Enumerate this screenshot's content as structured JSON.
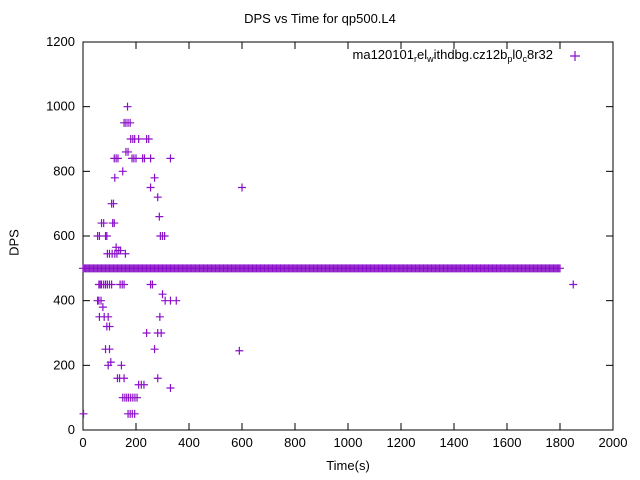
{
  "title": "DPS vs Time for qp500.L4",
  "legend": {
    "segments": [
      {
        "text": "ma120101",
        "sub": false
      },
      {
        "text": "r",
        "sub": true
      },
      {
        "text": "el",
        "sub": false
      },
      {
        "text": "w",
        "sub": true
      },
      {
        "text": "ithdbg.cz12b",
        "sub": false
      },
      {
        "text": "p",
        "sub": true
      },
      {
        "text": "l0",
        "sub": false
      },
      {
        "text": "c",
        "sub": true
      },
      {
        "text": "8r32",
        "sub": false
      }
    ],
    "marker": "+"
  },
  "chart_data": {
    "type": "scatter",
    "title": "DPS vs Time for qp500.L4",
    "xlabel": "Time(s)",
    "ylabel": "DPS",
    "xlim": [
      0,
      2000
    ],
    "ylim": [
      0,
      1200
    ],
    "xticks": [
      0,
      200,
      400,
      600,
      800,
      1000,
      1200,
      1400,
      1600,
      1800,
      2000
    ],
    "yticks": [
      0,
      200,
      400,
      600,
      800,
      1000,
      1200
    ],
    "grid": false,
    "legend_position": "top-right-inside",
    "marker": "plus",
    "color": "#8a0fc8",
    "series": [
      {
        "name": "ma120101_rel_withdbg.cz12b_pl0_c8r32",
        "band": {
          "y": 500,
          "x_start": 0,
          "x_end": 1800,
          "step": 5
        },
        "points": [
          [
            2,
            50
          ],
          [
            55,
            600
          ],
          [
            62,
            600
          ],
          [
            85,
            600
          ],
          [
            90,
            600
          ],
          [
            70,
            640
          ],
          [
            78,
            640
          ],
          [
            112,
            640
          ],
          [
            118,
            640
          ],
          [
            108,
            700
          ],
          [
            115,
            700
          ],
          [
            118,
            840
          ],
          [
            125,
            840
          ],
          [
            132,
            840
          ],
          [
            120,
            780
          ],
          [
            150,
            800
          ],
          [
            60,
            450
          ],
          [
            65,
            450
          ],
          [
            70,
            450
          ],
          [
            78,
            450
          ],
          [
            85,
            450
          ],
          [
            92,
            450
          ],
          [
            100,
            450
          ],
          [
            108,
            450
          ],
          [
            55,
            400
          ],
          [
            60,
            400
          ],
          [
            68,
            400
          ],
          [
            75,
            380
          ],
          [
            62,
            350
          ],
          [
            80,
            350
          ],
          [
            95,
            350
          ],
          [
            90,
            320
          ],
          [
            100,
            320
          ],
          [
            85,
            250
          ],
          [
            100,
            250
          ],
          [
            105,
            210
          ],
          [
            95,
            200
          ],
          [
            92,
            545
          ],
          [
            100,
            545
          ],
          [
            110,
            545
          ],
          [
            120,
            545
          ],
          [
            128,
            545
          ],
          [
            135,
            555
          ],
          [
            142,
            555
          ],
          [
            125,
            565
          ],
          [
            160,
            545
          ],
          [
            168,
            1000
          ],
          [
            155,
            950
          ],
          [
            162,
            950
          ],
          [
            170,
            950
          ],
          [
            178,
            950
          ],
          [
            180,
            900
          ],
          [
            188,
            900
          ],
          [
            195,
            900
          ],
          [
            210,
            900
          ],
          [
            162,
            860
          ],
          [
            170,
            860
          ],
          [
            185,
            840
          ],
          [
            192,
            840
          ],
          [
            200,
            840
          ],
          [
            225,
            840
          ],
          [
            232,
            840
          ],
          [
            240,
            900
          ],
          [
            248,
            900
          ],
          [
            255,
            840
          ],
          [
            330,
            840
          ],
          [
            270,
            780
          ],
          [
            255,
            750
          ],
          [
            282,
            720
          ],
          [
            288,
            660
          ],
          [
            292,
            600
          ],
          [
            300,
            600
          ],
          [
            308,
            600
          ],
          [
            140,
            450
          ],
          [
            148,
            450
          ],
          [
            155,
            450
          ],
          [
            255,
            450
          ],
          [
            262,
            450
          ],
          [
            300,
            420
          ],
          [
            310,
            400
          ],
          [
            330,
            400
          ],
          [
            352,
            400
          ],
          [
            290,
            350
          ],
          [
            282,
            300
          ],
          [
            295,
            300
          ],
          [
            270,
            250
          ],
          [
            240,
            300
          ],
          [
            130,
            160
          ],
          [
            138,
            160
          ],
          [
            155,
            160
          ],
          [
            145,
            200
          ],
          [
            210,
            140
          ],
          [
            220,
            140
          ],
          [
            230,
            140
          ],
          [
            282,
            160
          ],
          [
            330,
            130
          ],
          [
            150,
            100
          ],
          [
            158,
            100
          ],
          [
            165,
            100
          ],
          [
            172,
            100
          ],
          [
            180,
            100
          ],
          [
            188,
            100
          ],
          [
            196,
            100
          ],
          [
            204,
            100
          ],
          [
            170,
            50
          ],
          [
            178,
            50
          ],
          [
            186,
            50
          ],
          [
            195,
            50
          ],
          [
            600,
            750
          ],
          [
            590,
            245
          ],
          [
            1850,
            450
          ]
        ]
      }
    ]
  }
}
